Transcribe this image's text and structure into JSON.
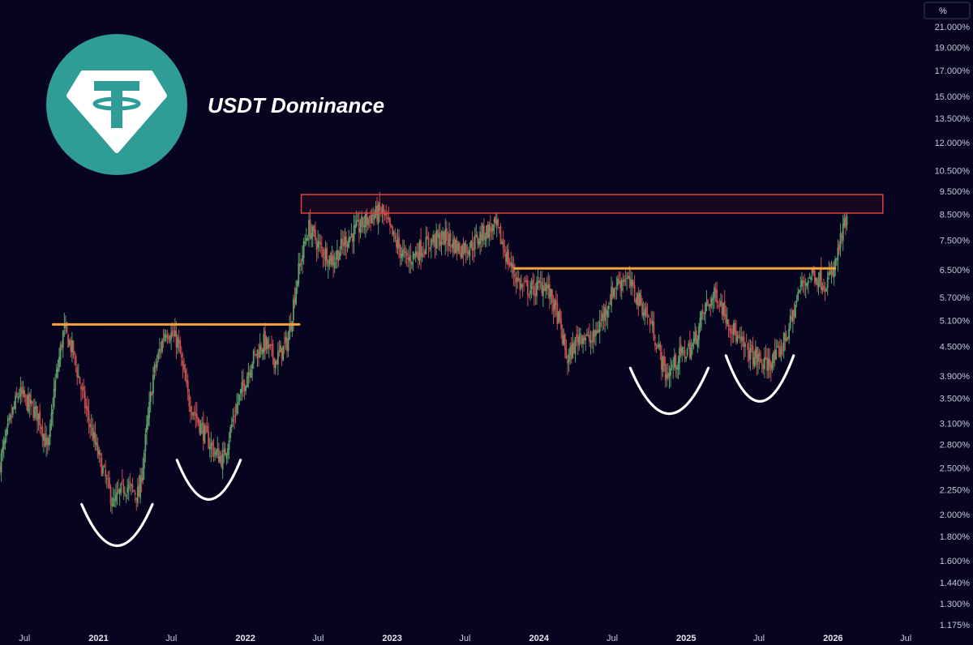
{
  "title": "USDT Dominance",
  "colors": {
    "background": "#06041e",
    "up": "#5e9c6a",
    "down": "#c2504f",
    "resistance_zone": "#e0413c",
    "neckline": "#f3a23c",
    "cups": "#ffffff",
    "logo": "#2f9d95"
  },
  "logo_icon": "tether-logo-icon",
  "chart_data": {
    "type": "candlestick",
    "title": "USDT Dominance",
    "y_unit": "%",
    "y_scale": "log",
    "y_ticks": [
      "21.000%",
      "19.000%",
      "17.000%",
      "15.000%",
      "13.500%",
      "12.000%",
      "10.500%",
      "9.500%",
      "8.500%",
      "7.500%",
      "6.500%",
      "5.700%",
      "5.100%",
      "4.500%",
      "3.900%",
      "3.500%",
      "3.100%",
      "2.800%",
      "2.500%",
      "2.250%",
      "2.000%",
      "1.800%",
      "1.600%",
      "1.440%",
      "1.300%",
      "1.175%"
    ],
    "x_ticks": [
      "Jul",
      "2021",
      "Jul",
      "2022",
      "Jul",
      "2023",
      "Jul",
      "2024",
      "Jul",
      "2025",
      "Jul",
      "2026",
      "Jul"
    ],
    "x_range": [
      "2020-05-01",
      "2026-07-31"
    ],
    "price_path": [
      [
        "2020-05-01",
        2.5
      ],
      [
        "2020-06-01",
        3.2
      ],
      [
        "2020-06-20",
        3.6
      ],
      [
        "2020-07-15",
        3.4
      ],
      [
        "2020-08-10",
        3.2
      ],
      [
        "2020-09-01",
        2.7
      ],
      [
        "2020-09-15",
        3.6
      ],
      [
        "2020-10-10",
        4.9
      ],
      [
        "2020-11-01",
        4.4
      ],
      [
        "2020-12-01",
        3.4
      ],
      [
        "2021-01-01",
        2.7
      ],
      [
        "2021-02-10",
        2.1
      ],
      [
        "2021-03-10",
        2.3
      ],
      [
        "2021-04-15",
        2.2
      ],
      [
        "2021-05-20",
        3.9
      ],
      [
        "2021-06-20",
        4.9
      ],
      [
        "2021-07-20",
        4.6
      ],
      [
        "2021-08-15",
        3.5
      ],
      [
        "2021-09-20",
        3.0
      ],
      [
        "2021-10-20",
        2.7
      ],
      [
        "2021-11-10",
        2.6
      ],
      [
        "2021-12-10",
        3.3
      ],
      [
        "2022-01-20",
        4.2
      ],
      [
        "2022-02-20",
        4.6
      ],
      [
        "2022-03-20",
        4.2
      ],
      [
        "2022-04-20",
        4.6
      ],
      [
        "2022-05-12",
        6.2
      ],
      [
        "2022-06-10",
        8.0
      ],
      [
        "2022-07-10",
        7.2
      ],
      [
        "2022-08-10",
        6.8
      ],
      [
        "2022-09-10",
        7.5
      ],
      [
        "2022-10-15",
        8.0
      ],
      [
        "2022-11-10",
        8.4
      ],
      [
        "2022-12-10",
        8.6
      ],
      [
        "2023-01-10",
        7.5
      ],
      [
        "2023-02-10",
        6.8
      ],
      [
        "2023-03-15",
        7.2
      ],
      [
        "2023-04-15",
        7.5
      ],
      [
        "2023-05-20",
        7.6
      ],
      [
        "2023-06-20",
        7.2
      ],
      [
        "2023-07-20",
        7.3
      ],
      [
        "2023-08-20",
        7.8
      ],
      [
        "2023-09-20",
        8.0
      ],
      [
        "2023-10-20",
        6.8
      ],
      [
        "2023-11-20",
        6.0
      ],
      [
        "2023-12-20",
        5.9
      ],
      [
        "2024-01-20",
        6.1
      ],
      [
        "2024-02-20",
        5.2
      ],
      [
        "2024-03-15",
        4.2
      ],
      [
        "2024-04-15",
        4.8
      ],
      [
        "2024-05-15",
        4.6
      ],
      [
        "2024-06-15",
        5.3
      ],
      [
        "2024-07-10",
        6.0
      ],
      [
        "2024-08-05",
        6.3
      ],
      [
        "2024-09-10",
        5.6
      ],
      [
        "2024-10-10",
        5.0
      ],
      [
        "2024-11-15",
        3.9
      ],
      [
        "2024-12-20",
        4.3
      ],
      [
        "2025-01-20",
        4.5
      ],
      [
        "2025-02-20",
        5.4
      ],
      [
        "2025-03-20",
        5.8
      ],
      [
        "2025-04-15",
        5.2
      ],
      [
        "2025-05-15",
        4.6
      ],
      [
        "2025-06-20",
        4.3
      ],
      [
        "2025-07-20",
        4.1
      ],
      [
        "2025-08-20",
        4.3
      ],
      [
        "2025-09-20",
        5.0
      ],
      [
        "2025-10-15",
        6.0
      ],
      [
        "2025-11-15",
        6.4
      ],
      [
        "2025-12-15",
        6.1
      ],
      [
        "2026-01-05",
        6.4
      ],
      [
        "2026-01-25",
        7.6
      ],
      [
        "2026-02-05",
        8.2
      ]
    ],
    "annotations": {
      "resistance_zone": {
        "from": "2022-05-20",
        "to": "2026-05-05",
        "low": 8.55,
        "high": 9.35
      },
      "necklines": [
        {
          "from": "2020-09-10",
          "to": "2022-05-15",
          "value": 5.0
        },
        {
          "from": "2023-11-01",
          "to": "2026-01-05",
          "value": 6.55
        }
      ],
      "cups": [
        {
          "from": "2020-11-20",
          "to": "2021-05-15",
          "top": 2.1,
          "bottom": 1.72
        },
        {
          "from": "2021-07-15",
          "to": "2021-12-20",
          "top": 2.6,
          "bottom": 2.15
        },
        {
          "from": "2024-08-15",
          "to": "2025-02-25",
          "top": 4.05,
          "bottom": 3.25
        },
        {
          "from": "2025-04-10",
          "to": "2025-09-25",
          "top": 4.3,
          "bottom": 3.45
        }
      ]
    }
  }
}
